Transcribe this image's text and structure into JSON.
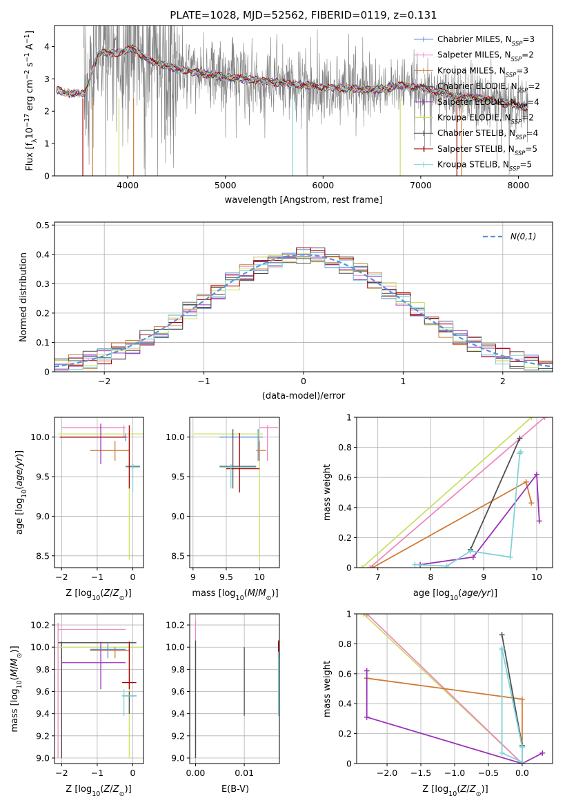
{
  "figure_title": "PLATE=1028, MJD=52562, FIBERID=0119, z=0.131",
  "legend_labels": [
    {
      "base": "Chabrier MILES, N",
      "sub": "SSP",
      "tail": "=3"
    },
    {
      "base": "Salpeter MILES, N",
      "sub": "SSP",
      "tail": "=2"
    },
    {
      "base": "Kroupa MILES, N",
      "sub": "SSP",
      "tail": "=3"
    },
    {
      "base": "Chabrier ELODIE, N",
      "sub": "SSP",
      "tail": "=2"
    },
    {
      "base": "Salpeter ELODIE, N",
      "sub": "SSP",
      "tail": "=4"
    },
    {
      "base": "Kroupa ELODIE, N",
      "sub": "SSP",
      "tail": "=2"
    },
    {
      "base": "Chabrier STELIB, N",
      "sub": "SSP",
      "tail": "=4"
    },
    {
      "base": "Salpeter STELIB, N",
      "sub": "SSP",
      "tail": "=5"
    },
    {
      "base": "Kroupa STELIB, N",
      "sub": "SSP",
      "tail": "=5"
    }
  ],
  "colors": {
    "Chabrier MILES": "#5b8fd8",
    "Salpeter MILES": "#ee88c0",
    "Kroupa MILES": "#d07a32",
    "Chabrier ELODIE": "#4a4a4a",
    "Salpeter ELODIE": "#9b30b8",
    "Kroupa ELODIE": "#c8e060",
    "Chabrier STELIB": "#505050",
    "Salpeter STELIB": "#a80000",
    "Kroupa STELIB": "#7fd3d6",
    "data": "#808080",
    "normal": "#5b8fd8"
  },
  "chart_data": [
    {
      "id": "spectrum",
      "type": "line",
      "xlabel": "wavelength [Angstrom, rest frame]",
      "ylabel": "Flux [f_λ 10^-17 erg cm^-2 s^-1 A^-1]",
      "xlim": [
        3250,
        8350
      ],
      "ylim": [
        0,
        4.65
      ],
      "xticks": [
        4000,
        5000,
        6000,
        7000,
        8000
      ],
      "yticks": [
        0,
        1,
        2,
        3,
        4
      ],
      "data_range_angstrom": [
        3550,
        8100
      ],
      "model_range_angstrom": [
        3270,
        8100
      ],
      "continuum_samples": [
        [
          3270,
          2.65
        ],
        [
          3420,
          2.55
        ],
        [
          3560,
          2.55
        ],
        [
          3700,
          3.8
        ],
        [
          3900,
          3.8
        ],
        [
          4050,
          3.95
        ],
        [
          4200,
          3.6
        ],
        [
          4500,
          3.3
        ],
        [
          5000,
          3.05
        ],
        [
          5500,
          2.9
        ],
        [
          6000,
          2.75
        ],
        [
          6500,
          2.65
        ],
        [
          6800,
          2.8
        ],
        [
          7000,
          2.75
        ],
        [
          7300,
          2.5
        ],
        [
          7600,
          2.4
        ],
        [
          8100,
          2.1
        ]
      ]
    },
    {
      "id": "residuals",
      "type": "histogram",
      "xlabel": "(data-model)/error",
      "ylabel": "Normed distribution",
      "xlim": [
        -2.5,
        2.5
      ],
      "ylim": [
        0,
        0.51
      ],
      "xticks": [
        -2,
        -1,
        0,
        1,
        2
      ],
      "yticks": [
        0.0,
        0.1,
        0.2,
        0.3,
        0.4,
        0.5
      ],
      "legend": "N(0,1)",
      "gaussian": {
        "mean": 0,
        "sigma": 1
      }
    },
    {
      "id": "age_vs_Z",
      "type": "scatter",
      "xlabel": "Z [log10(Z/Zsun)]",
      "ylabel": "age [log10(age/yr)]",
      "xlim": [
        -2.2,
        0.3
      ],
      "ylim": [
        8.35,
        10.25
      ],
      "xticks": [
        -2,
        -1,
        0
      ],
      "yticks": [
        8.5,
        9.0,
        9.5,
        10.0
      ],
      "points": [
        {
          "model": "Salpeter MILES",
          "x": -0.25,
          "y": 10.12,
          "x_lo": -2.0,
          "x_hi": -0.2,
          "y_lo": 10.0,
          "y_hi": 10.15
        },
        {
          "model": "Chabrier MILES",
          "x": -0.2,
          "y": 10.0,
          "x_lo": -2.05,
          "x_hi": -0.15,
          "y_lo": 9.95,
          "y_hi": 10.05
        },
        {
          "model": "Kroupa ELODIE",
          "x": -0.1,
          "y": 10.04,
          "x_lo": -2.1,
          "x_hi": 0.3,
          "y_lo": 8.45,
          "y_hi": 10.05
        },
        {
          "model": "Kroupa MILES",
          "x": -0.5,
          "y": 9.83,
          "x_lo": -1.2,
          "x_hi": -0.1,
          "y_lo": 9.7,
          "y_hi": 9.95
        },
        {
          "model": "Salpeter ELODIE",
          "x": -0.9,
          "y": 10.0,
          "x_lo": -2.0,
          "x_hi": -0.2,
          "y_lo": 9.66,
          "y_hi": 10.17
        },
        {
          "model": "Chabrier STELIB",
          "x": 0.0,
          "y": 9.63,
          "x_lo": -0.2,
          "x_hi": 0.2,
          "y_lo": 9.6,
          "y_hi": 9.66
        },
        {
          "model": "Kroupa STELIB",
          "x": 0.0,
          "y": 9.62,
          "x_lo": -0.2,
          "x_hi": 0.2,
          "y_lo": 9.3,
          "y_hi": 9.66
        },
        {
          "model": "Salpeter STELIB",
          "x": -0.1,
          "y": 10.0,
          "x_lo": -2.05,
          "x_hi": -0.2,
          "y_lo": 9.35,
          "y_hi": 10.15
        }
      ]
    },
    {
      "id": "age_vs_mass",
      "type": "scatter",
      "xlabel": "mass [log10(M/Msun)]",
      "ylabel": "",
      "xlim": [
        8.95,
        10.3
      ],
      "ylim": [
        8.35,
        10.25
      ],
      "xticks": [
        9.0,
        9.5,
        10.0
      ],
      "yticks": [
        8.5,
        9.0,
        9.5,
        10.0
      ],
      "points": [
        {
          "model": "Salpeter MILES",
          "x": 10.12,
          "y": 10.12,
          "x_lo": 10.0,
          "x_hi": 10.28,
          "y_lo": 9.7,
          "y_hi": 10.15
        },
        {
          "model": "Chabrier MILES",
          "x": 9.98,
          "y": 10.0,
          "x_lo": 9.4,
          "x_hi": 10.05,
          "y_lo": 9.7,
          "y_hi": 10.1
        },
        {
          "model": "Kroupa ELODIE",
          "x": 10.0,
          "y": 10.04,
          "x_lo": 9.0,
          "x_hi": 10.05,
          "y_lo": 8.45,
          "y_hi": 10.05
        },
        {
          "model": "Kroupa MILES",
          "x": 10.0,
          "y": 9.83,
          "x_lo": 9.95,
          "x_hi": 10.1,
          "y_lo": 9.7,
          "y_hi": 9.95
        },
        {
          "model": "Chabrier ELODIE",
          "x": 9.6,
          "y": 9.63,
          "x_lo": 9.4,
          "x_hi": 9.95,
          "y_lo": 9.35,
          "y_hi": 10.1
        },
        {
          "model": "Salpeter STELIB",
          "x": 9.7,
          "y": 9.6,
          "x_lo": 9.5,
          "x_hi": 10.0,
          "y_lo": 9.3,
          "y_hi": 10.05
        },
        {
          "model": "Kroupa STELIB",
          "x": 9.57,
          "y": 9.62,
          "x_lo": 9.4,
          "x_hi": 9.95,
          "y_lo": 9.35,
          "y_hi": 9.66
        }
      ]
    },
    {
      "id": "weight_vs_age",
      "type": "line",
      "xlabel": "age [log10(age/yr)]",
      "ylabel": "mass weight",
      "xlim": [
        6.6,
        10.3
      ],
      "ylim": [
        0,
        1.0
      ],
      "xticks": [
        7,
        8,
        9,
        10
      ],
      "yticks": [
        0.0,
        0.2,
        0.4,
        0.6,
        0.8,
        1.0
      ],
      "series": [
        {
          "model": "Kroupa ELODIE",
          "x": [
            6.7,
            9.9
          ],
          "y": [
            0.0,
            1.0
          ]
        },
        {
          "model": "Salpeter MILES",
          "x": [
            6.85,
            10.15
          ],
          "y": [
            0.0,
            1.0
          ]
        },
        {
          "model": "Kroupa MILES",
          "x": [
            6.9,
            9.8,
            9.9
          ],
          "y": [
            0.0,
            0.57,
            0.43
          ]
        },
        {
          "model": "Chabrier STELIB",
          "x": [
            8.75,
            9.68
          ],
          "y": [
            0.12,
            0.86
          ]
        },
        {
          "model": "Salpeter ELODIE",
          "x": [
            7.8,
            8.8,
            10.0,
            10.05
          ],
          "y": [
            0.02,
            0.07,
            0.62,
            0.31
          ]
        },
        {
          "model": "Kroupa STELIB",
          "x": [
            7.7,
            8.3,
            8.75,
            9.5,
            9.68,
            9.7
          ],
          "y": [
            0.02,
            0.01,
            0.11,
            0.07,
            0.76,
            0.77
          ]
        }
      ]
    },
    {
      "id": "mass_vs_Z",
      "type": "scatter",
      "xlabel": "Z [log10(Z/Zsun)]",
      "ylabel": "mass [log10(M/Msun)]",
      "xlim": [
        -2.2,
        0.3
      ],
      "ylim": [
        8.95,
        10.3
      ],
      "xticks": [
        -2,
        -1,
        0
      ],
      "yticks": [
        9.0,
        9.2,
        9.4,
        9.6,
        9.8,
        10.0,
        10.2
      ],
      "points": [
        {
          "model": "Salpeter MILES",
          "x": -2.1,
          "y": 10.16,
          "x_lo": -2.1,
          "x_hi": -0.2,
          "y_lo": 9.0,
          "y_hi": 10.22
        },
        {
          "model": "Chabrier ELODIE",
          "x": -2.0,
          "y": 10.04,
          "x_lo": -2.1,
          "x_hi": 0.1,
          "y_lo": 9.0,
          "y_hi": 10.05
        },
        {
          "model": "Kroupa ELODIE",
          "x": -0.1,
          "y": 10.0,
          "x_lo": -2.1,
          "x_hi": 0.3,
          "y_lo": 9.0,
          "y_hi": 10.05
        },
        {
          "model": "Kroupa MILES",
          "x": -0.5,
          "y": 9.97,
          "x_lo": -1.2,
          "x_hi": -0.1,
          "y_lo": 9.9,
          "y_hi": 10.0
        },
        {
          "model": "Salpeter ELODIE",
          "x": -0.9,
          "y": 9.86,
          "x_lo": -2.0,
          "x_hi": -0.2,
          "y_lo": 9.62,
          "y_hi": 10.05
        },
        {
          "model": "Salpeter STELIB",
          "x": -0.1,
          "y": 9.68,
          "x_lo": -0.3,
          "x_hi": 0.1,
          "y_lo": 9.62,
          "y_hi": 10.05
        },
        {
          "model": "Chabrier STELIB",
          "x": -0.1,
          "y": 9.56,
          "x_lo": -0.3,
          "x_hi": 0.1,
          "y_lo": 9.4,
          "y_hi": 9.6
        },
        {
          "model": "Kroupa STELIB",
          "x": -0.25,
          "y": 9.56,
          "x_lo": -0.3,
          "x_hi": 0.1,
          "y_lo": 9.38,
          "y_hi": 9.62
        },
        {
          "model": "Chabrier MILES",
          "x": -0.7,
          "y": 9.98,
          "x_lo": -1.2,
          "x_hi": -0.2,
          "y_lo": 9.9,
          "y_hi": 10.05
        }
      ]
    },
    {
      "id": "mass_vs_EBV",
      "type": "scatter",
      "xlabel": "E(B-V)",
      "ylabel": "",
      "xlim": [
        -0.0012,
        0.0172
      ],
      "ylim": [
        8.95,
        10.3
      ],
      "xticks": [
        0.0,
        0.01
      ],
      "xticklabels": [
        "0.00",
        "0.01"
      ],
      "yticks": [
        9.0,
        9.2,
        9.4,
        9.6,
        9.8,
        10.0,
        10.2
      ],
      "points": [
        {
          "model": "Salpeter MILES",
          "x": 0.0,
          "y": 10.16,
          "y_lo": 9.0,
          "y_hi": 10.25
        },
        {
          "model": "Kroupa ELODIE",
          "x": 0.0,
          "y": 10.0,
          "y_lo": 9.0,
          "y_hi": 10.05
        },
        {
          "model": "Chabrier ELODIE",
          "x": 0.0,
          "y": 10.04,
          "y_lo": 9.0,
          "y_hi": 10.06
        },
        {
          "model": "Chabrier STELIB",
          "x": 0.01,
          "y": 9.56,
          "y_lo": 9.38,
          "y_hi": 10.0
        },
        {
          "model": "Salpeter STELIB",
          "x": 0.017,
          "y": 9.96,
          "y_lo": 9.9,
          "y_hi": 10.06
        },
        {
          "model": "Kroupa STELIB",
          "x": 0.017,
          "y": 9.56,
          "y_lo": 9.38,
          "y_hi": 9.96
        }
      ]
    },
    {
      "id": "weight_vs_Z",
      "type": "line",
      "xlabel": "Z [log10(Z/Zsun)]",
      "ylabel": "mass weight",
      "xlim": [
        -2.45,
        0.45
      ],
      "ylim": [
        0,
        1.0
      ],
      "xticks": [
        -2.0,
        -1.5,
        -1.0,
        -0.5,
        0.0
      ],
      "xticklabels": [
        "−2.0",
        "−1.5",
        "−1.0",
        "−0.5",
        "0.0"
      ],
      "yticks": [
        0.0,
        0.2,
        0.4,
        0.6,
        0.8,
        1.0
      ],
      "series": [
        {
          "model": "Kroupa ELODIE",
          "x": [
            -2.35,
            0.0
          ],
          "y": [
            1.0,
            0.0
          ]
        },
        {
          "model": "Salpeter MILES",
          "x": [
            -2.3,
            0.0
          ],
          "y": [
            1.0,
            0.0
          ]
        },
        {
          "model": "Kroupa MILES",
          "x": [
            -2.3,
            0.0,
            0.0
          ],
          "y": [
            0.57,
            0.43,
            0.0
          ]
        },
        {
          "model": "Chabrier STELIB",
          "x": [
            -0.3,
            0.0
          ],
          "y": [
            0.86,
            0.12
          ]
        },
        {
          "model": "Salpeter ELODIE",
          "x": [
            -2.3,
            -2.3,
            0.0,
            0.3
          ],
          "y": [
            0.62,
            0.31,
            0.0,
            0.07
          ]
        },
        {
          "model": "Kroupa STELIB",
          "x": [
            -0.3,
            -0.3,
            0.0,
            0.0,
            -0.3
          ],
          "y": [
            0.76,
            0.07,
            0.01,
            0.11,
            0.77
          ]
        }
      ]
    }
  ]
}
